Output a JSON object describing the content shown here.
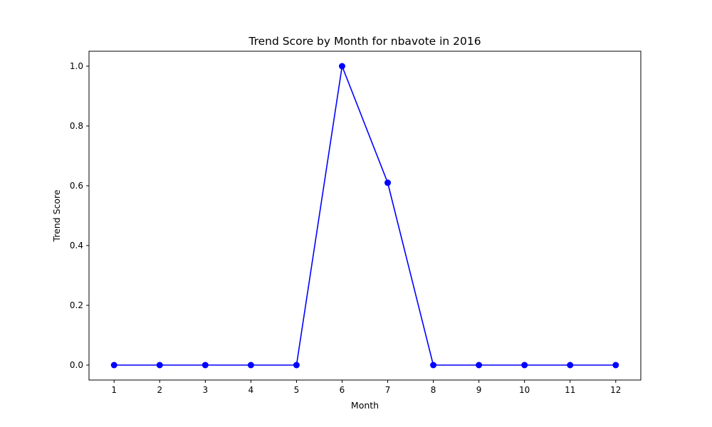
{
  "chart_data": {
    "type": "line",
    "title": "Trend Score by Month for nbavote in 2016",
    "xlabel": "Month",
    "ylabel": "Trend Score",
    "x": [
      1,
      2,
      3,
      4,
      5,
      6,
      7,
      8,
      9,
      10,
      11,
      12
    ],
    "series": [
      {
        "values": [
          0,
          0,
          0,
          0,
          0,
          1.0,
          0.61,
          0,
          0,
          0,
          0,
          0
        ],
        "color": "#0000ff",
        "marker": "circle"
      }
    ],
    "xlim": [
      0.45,
      12.55
    ],
    "ylim": [
      -0.05,
      1.05
    ],
    "xticks": [
      1,
      2,
      3,
      4,
      5,
      6,
      7,
      8,
      9,
      10,
      11,
      12
    ],
    "xtick_labels": [
      "1",
      "2",
      "3",
      "4",
      "5",
      "6",
      "7",
      "8",
      "9",
      "10",
      "11",
      "12"
    ],
    "yticks": [
      0.0,
      0.2,
      0.4,
      0.6,
      0.8,
      1.0
    ],
    "ytick_labels": [
      "0.0",
      "0.2",
      "0.4",
      "0.6",
      "0.8",
      "1.0"
    ],
    "grid": false,
    "legend": "none"
  }
}
